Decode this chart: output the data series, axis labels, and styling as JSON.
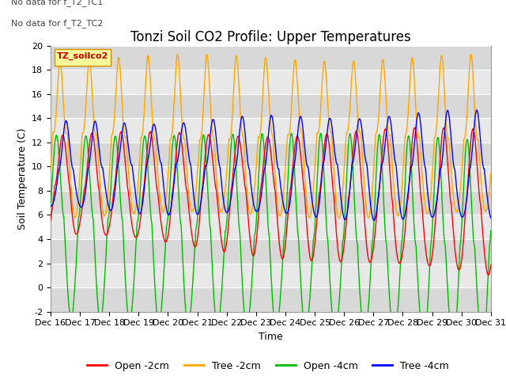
{
  "title": "Tonzi Soil CO2 Profile: Upper Temperatures",
  "ylabel": "Soil Temperature (C)",
  "xlabel": "Time",
  "ylim": [
    -2,
    20
  ],
  "xlim": [
    0,
    15
  ],
  "x_tick_labels": [
    "Dec 16",
    "Dec 17",
    "Dec 18",
    "Dec 19",
    "Dec 20",
    "Dec 21",
    "Dec 22",
    "Dec 23",
    "Dec 24",
    "Dec 25",
    "Dec 26",
    "Dec 27",
    "Dec 28",
    "Dec 29",
    "Dec 30",
    "Dec 31"
  ],
  "no_data_text1": "No data for f_T2_TC1",
  "no_data_text2": "No data for f_T2_TC2",
  "legend_label_text": "TZ_soilco2",
  "legend_items": [
    "Open -2cm",
    "Tree -2cm",
    "Open -4cm",
    "Tree -4cm"
  ],
  "legend_colors": [
    "#ff0000",
    "#ffa500",
    "#00bb00",
    "#0000ff"
  ],
  "bg_color": "#ffffff",
  "plot_bg_color": "#e8e8e8",
  "band_colors": [
    "#d8d8d8",
    "#e8e8e8"
  ],
  "title_fontsize": 12,
  "axis_fontsize": 9,
  "tick_fontsize": 8,
  "figsize": [
    6.4,
    4.8
  ],
  "dpi": 100
}
